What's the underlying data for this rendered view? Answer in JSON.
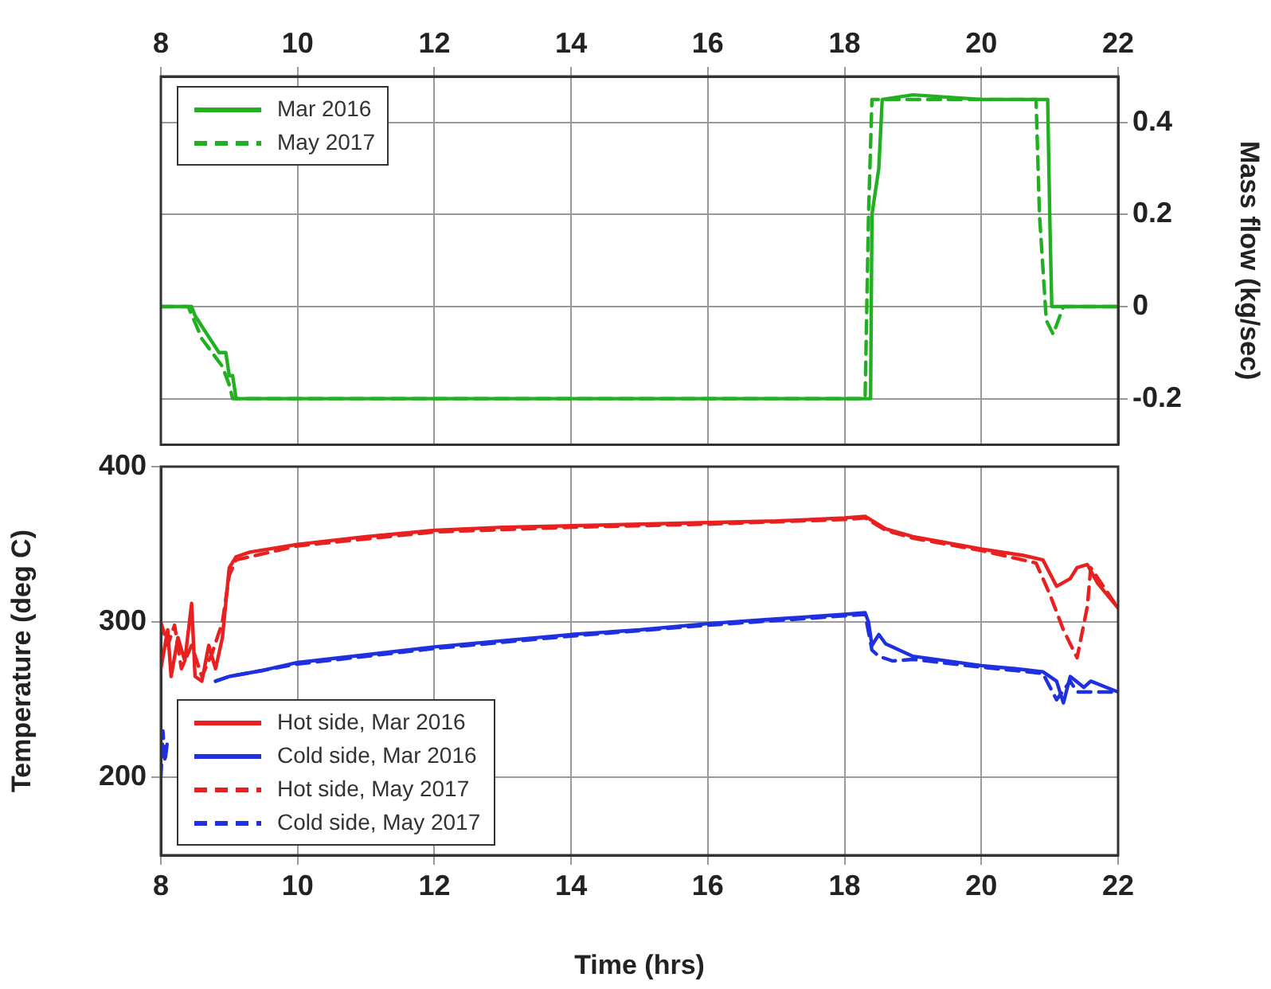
{
  "chart_data": [
    {
      "type": "line",
      "xlim": [
        8,
        22
      ],
      "xticks": [
        8,
        10,
        12,
        14,
        16,
        18,
        20,
        22
      ],
      "ylim": [
        -0.3,
        0.5
      ],
      "yticks": [
        -0.2,
        0,
        0.2,
        0.4
      ],
      "ylabel": "Mass flow (kg/sec)",
      "grid": true,
      "legend": "top left",
      "series": [
        {
          "name": "Mar 2016",
          "color": "#22b022",
          "line_style": "solid",
          "x": [
            8,
            8.45,
            8.5,
            8.85,
            8.95,
            9.0,
            9.05,
            9.1,
            18.38,
            18.4,
            18.5,
            18.55,
            19,
            20,
            20.97,
            21.0,
            21.03,
            22
          ],
          "values": [
            0,
            0,
            -0.02,
            -0.1,
            -0.1,
            -0.15,
            -0.15,
            -0.2,
            -0.2,
            0.2,
            0.3,
            0.45,
            0.46,
            0.45,
            0.45,
            0.2,
            0,
            0
          ]
        },
        {
          "name": "May 2017",
          "color": "#22b022",
          "line_style": "dashed",
          "x": [
            8,
            8.4,
            8.6,
            8.9,
            9.0,
            9.05,
            18.3,
            18.35,
            18.4,
            19,
            20,
            20.8,
            20.85,
            20.95,
            21.05,
            21.2,
            22
          ],
          "values": [
            0,
            0,
            -0.07,
            -0.13,
            -0.17,
            -0.2,
            -0.2,
            0.2,
            0.45,
            0.45,
            0.45,
            0.45,
            0.2,
            -0.03,
            -0.06,
            0,
            0
          ]
        }
      ]
    },
    {
      "type": "line",
      "xlim": [
        8,
        22
      ],
      "xticks": [
        8,
        10,
        12,
        14,
        16,
        18,
        20,
        22
      ],
      "ylim": [
        150,
        400
      ],
      "yticks": [
        200,
        300,
        400
      ],
      "xlabel": "Time (hrs)",
      "ylabel": "Temperature (deg C)",
      "grid": true,
      "legend": "bottom left",
      "series": [
        {
          "name": "Hot side, Mar 2016",
          "color": "#e82020",
          "line_style": "solid",
          "x": [
            8,
            8.1,
            8.15,
            8.25,
            8.35,
            8.45,
            8.5,
            8.6,
            8.7,
            8.8,
            8.9,
            9.0,
            9.1,
            9.3,
            10,
            11,
            12,
            13,
            14,
            15,
            16,
            17,
            18,
            18.3,
            18.6,
            19,
            20,
            20.6,
            20.9,
            21.1,
            21.3,
            21.4,
            21.55,
            21.7,
            22
          ],
          "values": [
            270,
            295,
            265,
            290,
            275,
            312,
            265,
            262,
            285,
            270,
            290,
            335,
            342,
            345,
            350,
            355,
            359,
            361,
            362,
            363,
            364,
            365,
            367,
            368,
            360,
            355,
            347,
            343,
            340,
            323,
            328,
            335,
            337,
            325,
            309
          ]
        },
        {
          "name": "Cold side, Mar 2016",
          "color": "#1f30e0",
          "line_style": "solid",
          "x": [
            8.8,
            9.0,
            9.5,
            10,
            11,
            12,
            13,
            14,
            15,
            16,
            17,
            18,
            18.3,
            18.35,
            18.4,
            18.5,
            18.6,
            19,
            20,
            20.5,
            20.9,
            21.1,
            21.2,
            21.3,
            21.5,
            21.6,
            22
          ],
          "values": [
            262,
            265,
            269,
            274,
            279,
            284,
            288,
            292,
            295,
            299,
            302,
            305,
            306,
            300,
            285,
            292,
            286,
            278,
            272,
            270,
            268,
            262,
            248,
            265,
            258,
            262,
            255
          ]
        },
        {
          "name": "Hot side, May 2017",
          "color": "#e82020",
          "line_style": "dashed",
          "x": [
            8,
            8.1,
            8.2,
            8.3,
            8.45,
            8.6,
            8.75,
            8.9,
            9.0,
            9.1,
            10,
            12,
            14,
            16,
            18,
            18.3,
            18.6,
            19,
            20,
            20.8,
            21.0,
            21.2,
            21.4,
            21.55,
            21.6,
            21.8,
            22
          ],
          "values": [
            300,
            285,
            298,
            270,
            285,
            265,
            280,
            300,
            330,
            340,
            349,
            358,
            361,
            363,
            366,
            367,
            359,
            354,
            346,
            338,
            318,
            295,
            277,
            310,
            335,
            322,
            309
          ]
        },
        {
          "name": "Cold side, May 2017",
          "color": "#1f30e0",
          "line_style": "dashed",
          "x": [
            8.0,
            8.03,
            8.06,
            8.1,
            8.12,
            8.8,
            9.0,
            10,
            12,
            14,
            16,
            18,
            18.3,
            18.4,
            18.5,
            18.7,
            19,
            20,
            20.9,
            21.1,
            21.3,
            21.4,
            22
          ],
          "values": [
            200,
            230,
            210,
            225,
            null,
            262,
            265,
            273,
            283,
            291,
            298,
            304,
            305,
            282,
            278,
            275,
            276,
            271,
            267,
            250,
            262,
            255,
            255
          ]
        }
      ]
    }
  ]
}
